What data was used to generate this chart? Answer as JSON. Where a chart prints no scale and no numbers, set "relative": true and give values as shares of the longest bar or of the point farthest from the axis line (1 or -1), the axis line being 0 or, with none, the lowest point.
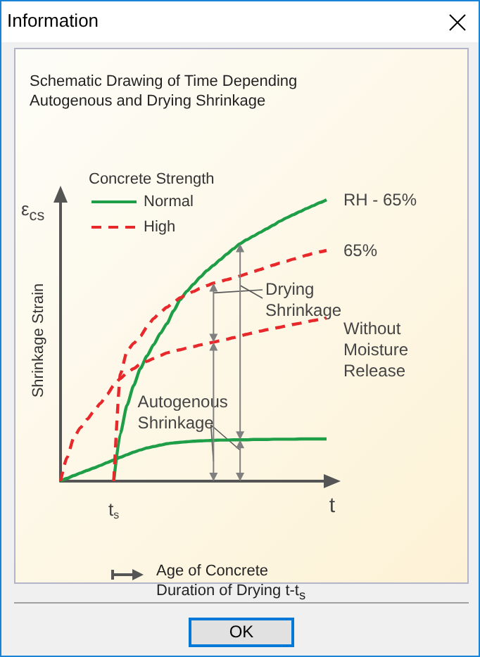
{
  "chart_data": {
    "type": "line",
    "title": "Information",
    "subtitle": "Schematic Drawing of Time Depending Autogenous and Drying Shrinkage",
    "ylabel": "Shrinkage Strain",
    "xlabel": "t",
    "legend_title": "Concrete Strength",
    "relative": true,
    "grid": false,
    "legend": "top left",
    "marker": "none",
    "categories": [
      null,
      null,
      null,
      null,
      null,
      null,
      null,
      null,
      null,
      null,
      null,
      null,
      null,
      null,
      null,
      null,
      null,
      null,
      null,
      null,
      null,
      null,
      null,
      null,
      null,
      null,
      null,
      null,
      null,
      null,
      null,
      null,
      null,
      null,
      null,
      null,
      null,
      null,
      null,
      null,
      null
    ],
    "series": [
      {
        "name": "Normal",
        "color": "#1f9e48",
        "line_style": "solid",
        "values": [
          0,
          0.01,
          0.02,
          0.029,
          0.038,
          0.047,
          0.056,
          0.066,
          0.075,
          0.085,
          0.094,
          0.103,
          0.111,
          0.118,
          0.123,
          0.128,
          0.133,
          0.136,
          0.138,
          0.14,
          0.142,
          0.143,
          0.144,
          0.145,
          0.146,
          0.146,
          0.147,
          0.147,
          0.147,
          0.148,
          0.148,
          0.148,
          0.149,
          0.149,
          0.149,
          0.149,
          0.15,
          0.15,
          0.15,
          0.15,
          0.15
        ]
      },
      {
        "color": "#1f9e48",
        "line_style": "solid",
        "values": [
          null,
          null,
          null,
          null,
          null,
          null,
          null,
          null,
          0,
          0.17,
          0.27,
          0.34,
          0.4,
          0.445,
          0.485,
          0.525,
          0.56,
          0.605,
          0.645,
          0.675,
          0.7,
          0.725,
          0.748,
          0.767,
          0.787,
          0.807,
          0.826,
          0.844,
          0.858,
          0.871,
          0.884,
          0.897,
          0.91,
          0.924,
          0.936,
          0.947,
          0.958,
          0.969,
          0.979,
          0.99,
          1
        ]
      },
      {
        "name": "High",
        "color": "#e8292b",
        "line_style": "dashed",
        "values": [
          0,
          0.085,
          0.155,
          0.19,
          0.22,
          0.248,
          0.277,
          0.308,
          0.34,
          0.365,
          0.385,
          0.4,
          0.416,
          0.426,
          0.436,
          0.447,
          0.456,
          0.462,
          0.467,
          0.473,
          0.478,
          0.484,
          0.489,
          0.494,
          0.499,
          0.504,
          0.51,
          0.516,
          0.522,
          0.527,
          0.533,
          0.538,
          0.543,
          0.547,
          0.552,
          0.557,
          0.561,
          0.566,
          0.571,
          0.575,
          0.58
        ]
      },
      {
        "color": "#e8292b",
        "line_style": "dashed",
        "values": [
          null,
          null,
          null,
          null,
          null,
          null,
          null,
          null,
          0,
          0.38,
          0.462,
          0.49,
          0.515,
          0.548,
          0.578,
          0.6,
          0.618,
          0.636,
          0.652,
          0.664,
          0.674,
          0.685,
          0.695,
          0.704,
          0.71,
          0.716,
          0.722,
          0.729,
          0.737,
          0.745,
          0.752,
          0.76,
          0.768,
          0.775,
          0.782,
          0.789,
          0.796,
          0.803,
          0.809,
          0.815,
          0.82
        ]
      }
    ],
    "annotations": [
      "RH - 65%",
      "65%",
      "Without Moisture Release",
      "Drying Shrinkage",
      "Autogenous Shrinkage",
      "ε$_{cs}$",
      "t$_{s}$",
      "Age of Concrete",
      "Duration of Drying t-t$_{s}$",
      "OK"
    ]
  }
}
